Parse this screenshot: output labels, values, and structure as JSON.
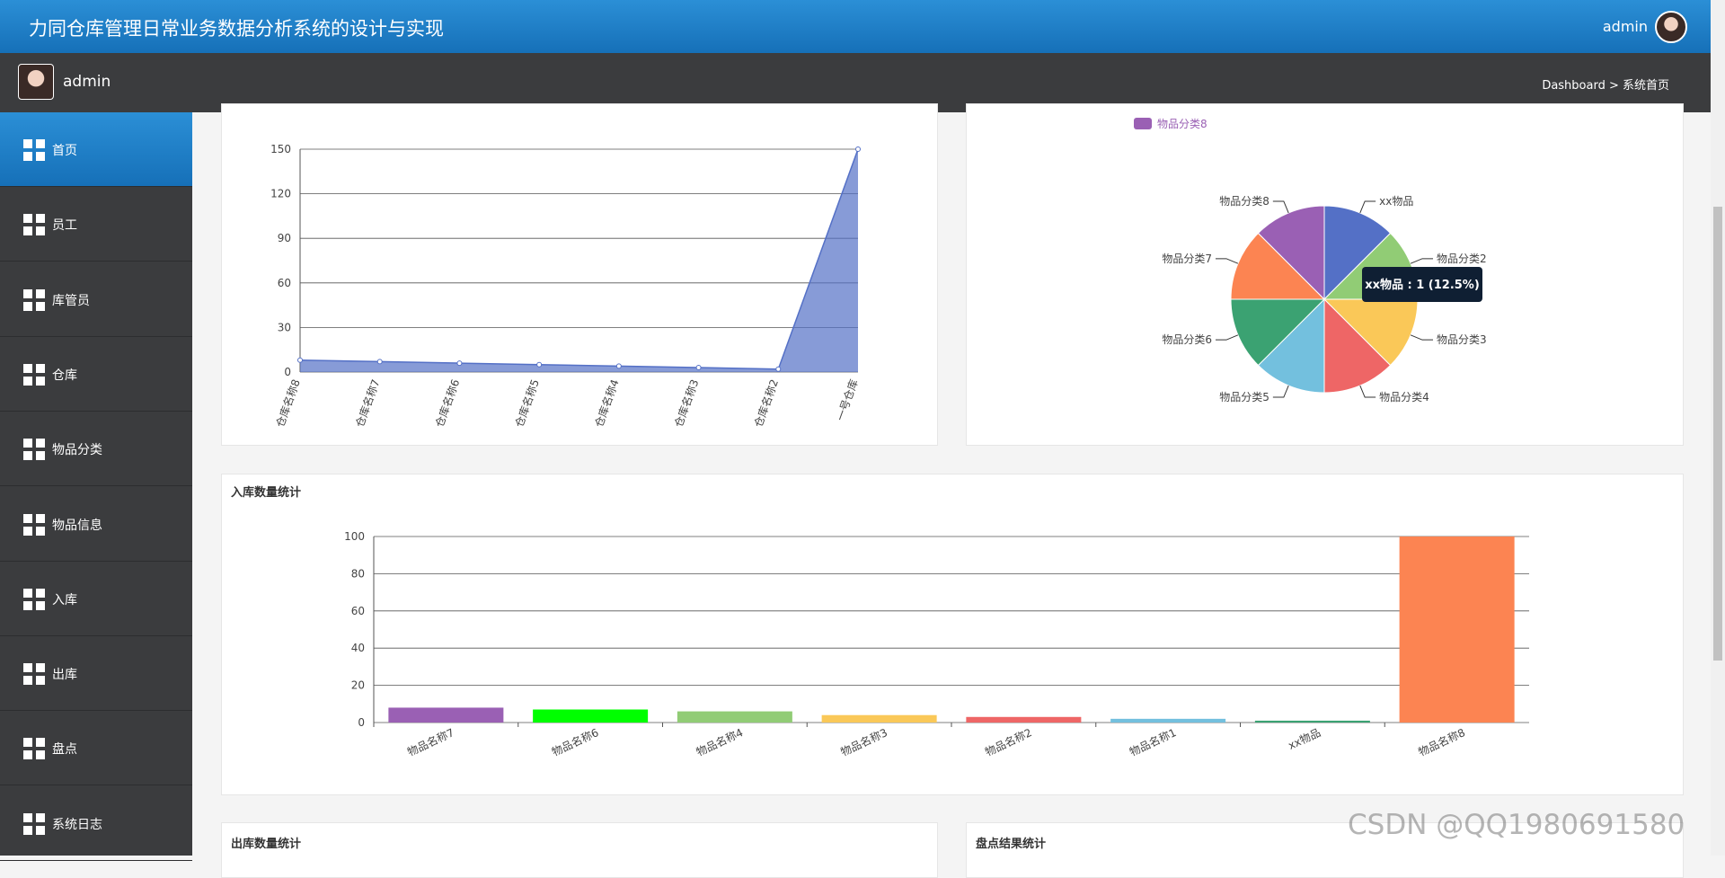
{
  "header": {
    "title": "力同仓库管理日常业务数据分析系统的设计与实现",
    "user": "admin"
  },
  "topbar": {
    "user": "admin",
    "breadcrumb": "Dashboard > 系统首页"
  },
  "sidebar": {
    "items": [
      "首页",
      "员工",
      "库管员",
      "仓库",
      "物品分类",
      "物品信息",
      "入库",
      "出库",
      "盘点",
      "系统日志"
    ]
  },
  "chart_data": [
    {
      "type": "area",
      "categories": [
        "仓库名称8",
        "仓库名称7",
        "仓库名称6",
        "仓库名称5",
        "仓库名称4",
        "仓库名称3",
        "仓库名称2",
        "一号仓库"
      ],
      "values": [
        8,
        7,
        6,
        5,
        4,
        3,
        2,
        150
      ],
      "color": "#5470c6",
      "ylim": [
        0,
        150
      ],
      "yticks": [
        0,
        30,
        60,
        90,
        120,
        150
      ],
      "grid": true
    },
    {
      "type": "pie",
      "categories": [
        "xx物品",
        "物品分类2",
        "物品分类3",
        "物品分类4",
        "物品分类5",
        "物品分类6",
        "物品分类7",
        "物品分类8"
      ],
      "values": [
        1,
        1,
        1,
        1,
        1,
        1,
        1,
        1
      ],
      "colors": [
        "#5470c6",
        "#91cc75",
        "#fac858",
        "#ee6666",
        "#73c0de",
        "#3ba272",
        "#fc8452",
        "#9a60b4"
      ],
      "tooltip": "xx物品 : 1 (12.5%)"
    },
    {
      "type": "bar",
      "title": "入库数量统计",
      "categories": [
        "物品名称7",
        "物品名称6",
        "物品名称4",
        "物品名称3",
        "物品名称2",
        "物品名称1",
        "xx物品",
        "物品名称8"
      ],
      "values": [
        8,
        7,
        6,
        4,
        3,
        2,
        1,
        100
      ],
      "colors": [
        "#9a60b4",
        "#00ff00",
        "#91cc75",
        "#fac858",
        "#ee6666",
        "#73c0de",
        "#3ba272",
        "#fc8452"
      ],
      "ylim": [
        0,
        100
      ],
      "yticks": [
        0,
        20,
        40,
        60,
        80,
        100
      ],
      "grid": true
    }
  ],
  "cards": [
    {
      "title": "出库数量统计"
    },
    {
      "title": "盘点结果统计"
    }
  ],
  "watermark": "CSDN @QQ1980691580"
}
